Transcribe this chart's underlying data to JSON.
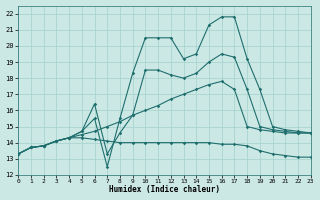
{
  "xlabel": "Humidex (Indice chaleur)",
  "xlim": [
    0,
    23
  ],
  "ylim": [
    12,
    22.5
  ],
  "xticks": [
    0,
    1,
    2,
    3,
    4,
    5,
    6,
    7,
    8,
    9,
    10,
    11,
    12,
    13,
    14,
    15,
    16,
    17,
    18,
    19,
    20,
    21,
    22,
    23
  ],
  "yticks": [
    12,
    13,
    14,
    15,
    16,
    17,
    18,
    19,
    20,
    21,
    22
  ],
  "bg_color": "#cce8e5",
  "grid_color": "#aad4d0",
  "line_color": "#1e6e6e",
  "lines": [
    {
      "x": [
        0,
        1,
        2,
        3,
        4,
        5,
        6,
        7,
        8,
        9,
        10,
        11,
        12,
        13,
        14,
        15,
        16,
        17,
        18,
        19,
        20,
        21,
        22,
        23
      ],
      "y": [
        13.3,
        13.7,
        13.8,
        14.1,
        14.3,
        14.3,
        14.2,
        14.1,
        14.0,
        14.0,
        14.0,
        14.0,
        14.0,
        14.0,
        14.0,
        14.0,
        13.9,
        13.9,
        13.8,
        13.5,
        13.3,
        13.2,
        13.1,
        13.1
      ]
    },
    {
      "x": [
        0,
        1,
        2,
        3,
        4,
        5,
        6,
        7,
        8,
        9,
        10,
        11,
        12,
        13,
        14,
        15,
        16,
        17,
        18,
        19,
        20,
        21,
        22,
        23
      ],
      "y": [
        13.3,
        13.7,
        13.8,
        14.1,
        14.3,
        14.5,
        14.7,
        15.0,
        15.3,
        15.7,
        16.0,
        16.3,
        16.7,
        17.0,
        17.3,
        17.6,
        17.8,
        17.3,
        15.0,
        14.8,
        14.7,
        14.6,
        14.6,
        14.6
      ]
    },
    {
      "x": [
        0,
        1,
        2,
        3,
        4,
        5,
        6,
        7,
        8,
        9,
        10,
        11,
        12,
        13,
        14,
        15,
        16,
        17,
        18,
        19,
        20,
        21,
        22,
        23
      ],
      "y": [
        13.3,
        13.7,
        13.8,
        14.1,
        14.3,
        14.7,
        16.4,
        13.3,
        14.6,
        15.7,
        18.5,
        18.5,
        18.2,
        18.0,
        18.3,
        19.0,
        19.5,
        19.3,
        17.3,
        15.0,
        14.8,
        14.7,
        14.6,
        14.6
      ]
    },
    {
      "x": [
        0,
        1,
        2,
        3,
        4,
        5,
        6,
        7,
        8,
        9,
        10,
        11,
        12,
        13,
        14,
        15,
        16,
        17,
        18,
        19,
        20,
        21,
        22,
        23
      ],
      "y": [
        13.3,
        13.7,
        13.8,
        14.1,
        14.3,
        14.7,
        15.5,
        12.5,
        15.5,
        18.3,
        20.5,
        20.5,
        20.5,
        19.2,
        19.5,
        21.3,
        21.8,
        21.8,
        19.2,
        17.3,
        15.0,
        14.8,
        14.7,
        14.6
      ]
    }
  ]
}
